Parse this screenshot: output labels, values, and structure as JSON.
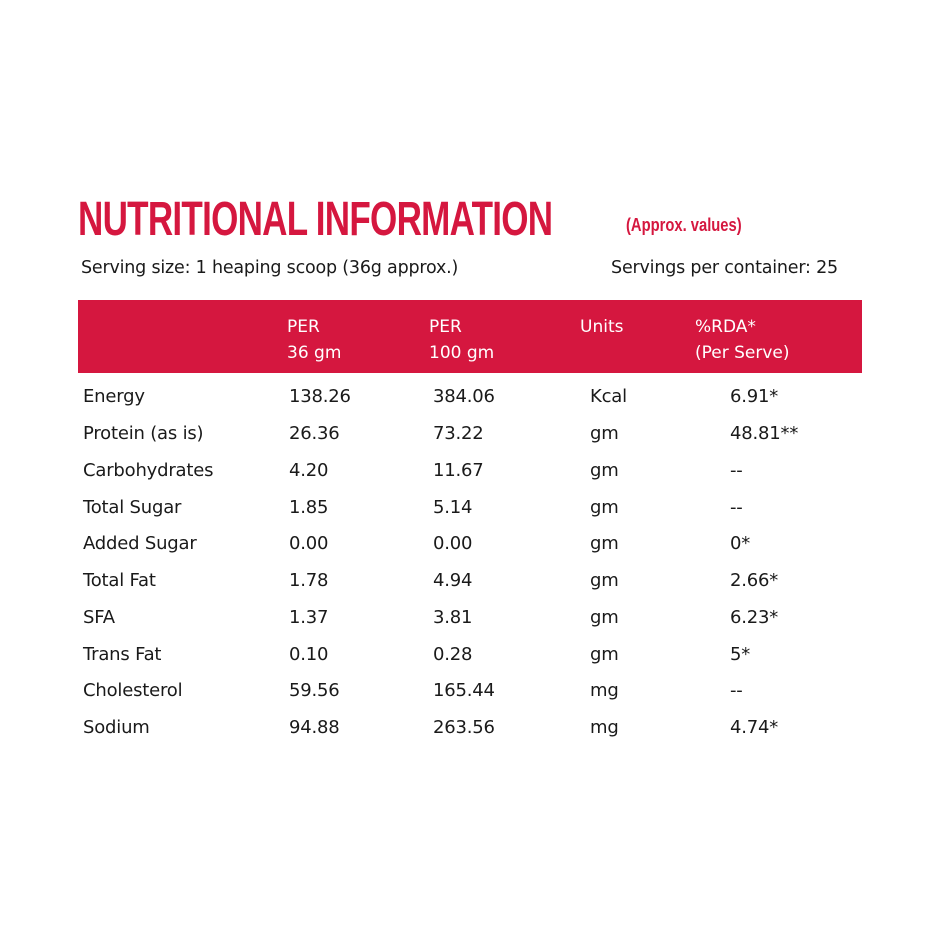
{
  "title": "NUTRITIONAL INFORMATION",
  "title_note": "(Approx. values)",
  "serving_size": "Serving size: 1 heaping scoop (36g approx.)",
  "servings_per_container": "Servings per container: 25",
  "colors": {
    "accent": "#d5173f",
    "text": "#1a1a1a",
    "header_text": "#ffffff"
  },
  "table": {
    "headers": [
      "",
      "PER\n36 gm",
      "PER\n100 gm",
      "Units",
      "%RDA*\n(Per Serve)"
    ],
    "rows": [
      [
        "Energy",
        "138.26",
        "384.06",
        "Kcal",
        "6.91*"
      ],
      [
        "Protein (as is)",
        "26.36",
        "73.22",
        "gm",
        "48.81**"
      ],
      [
        "Carbohydrates",
        "4.20",
        "11.67",
        "gm",
        "--"
      ],
      [
        "Total Sugar",
        "1.85",
        "5.14",
        "gm",
        "--"
      ],
      [
        "Added Sugar",
        "0.00",
        "0.00",
        "gm",
        "0*"
      ],
      [
        "Total Fat",
        "1.78",
        "4.94",
        "gm",
        "2.66*"
      ],
      [
        "SFA",
        "1.37",
        "3.81",
        "gm",
        "6.23*"
      ],
      [
        "Trans Fat",
        "0.10",
        "0.28",
        "gm",
        "5*"
      ],
      [
        "Cholesterol",
        "59.56",
        "165.44",
        "mg",
        "--"
      ],
      [
        "Sodium",
        "94.88",
        "263.56",
        "mg",
        "4.74*"
      ]
    ]
  }
}
